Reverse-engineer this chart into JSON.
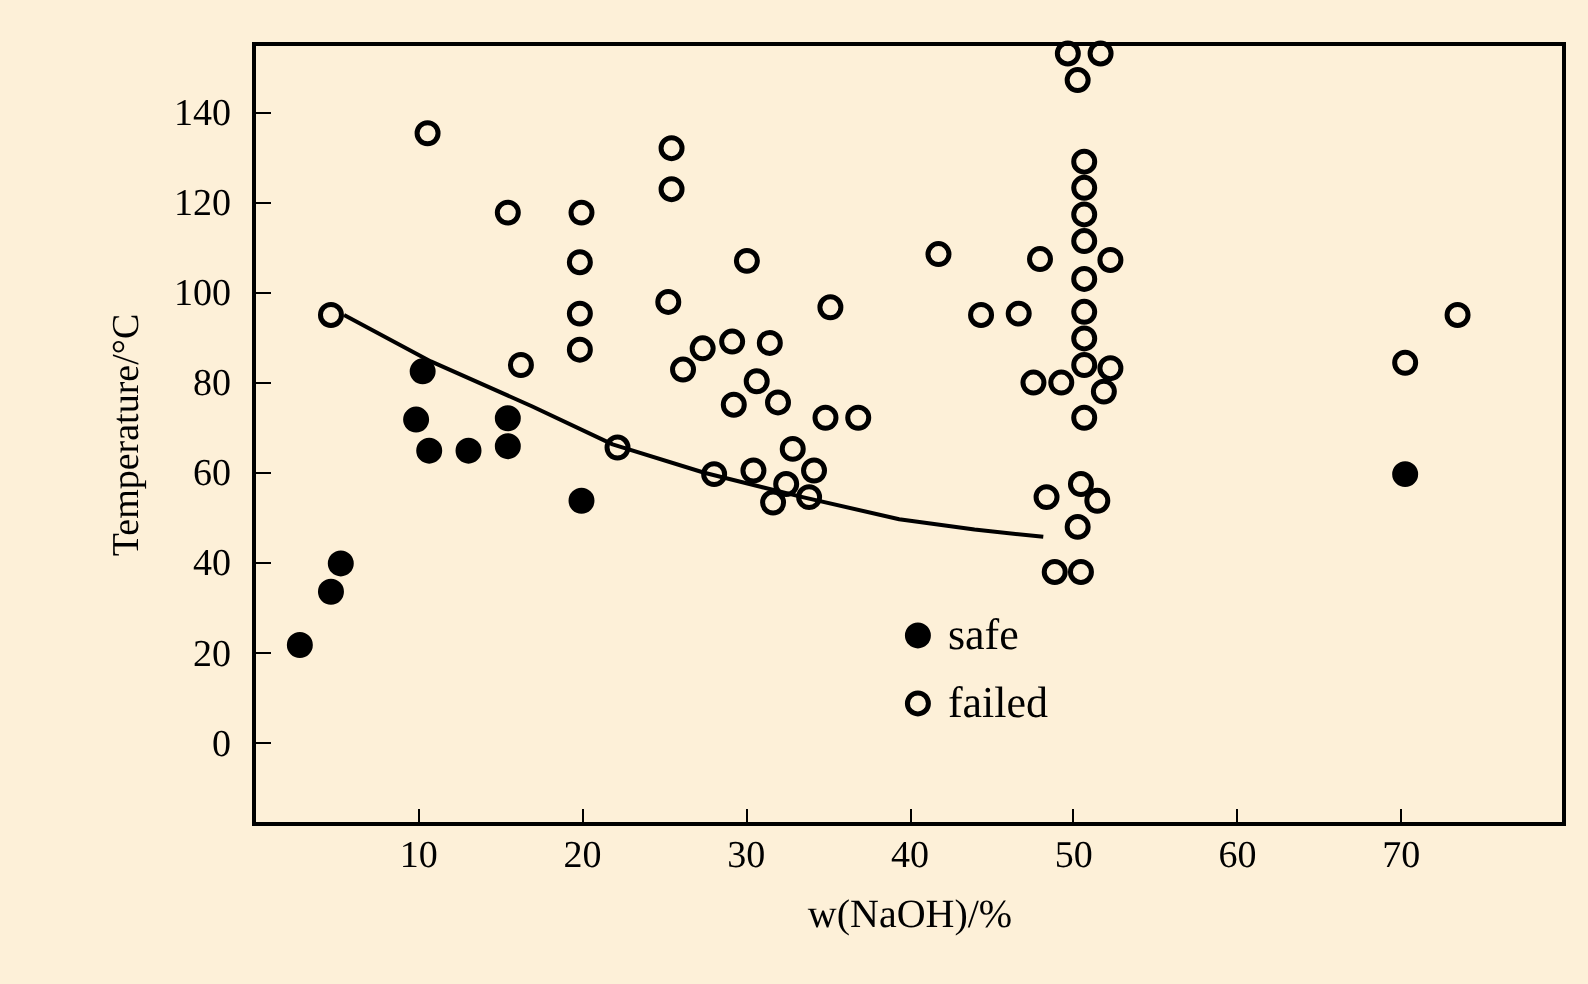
{
  "chart_data": {
    "type": "scatter",
    "xlabel": "w(NaOH)/%",
    "ylabel": "Temperature/°C",
    "xlim": [
      0,
      80
    ],
    "xticks": [
      10,
      20,
      30,
      40,
      50,
      60,
      70
    ],
    "ylim": [
      -18,
      155
    ],
    "yticks": [
      0,
      20,
      40,
      60,
      80,
      100,
      120,
      140
    ],
    "grid": false,
    "legend": "bottom",
    "marker": "circle",
    "series": [
      {
        "name": "safe",
        "color": "#000000",
        "x": [
          2.8,
          4.7,
          5.3,
          10.3,
          9.9,
          10.7,
          13.1,
          15.5,
          15.5,
          20.0,
          70.3
        ],
        "values": [
          21.7,
          33.5,
          39.8,
          82.4,
          71.7,
          64.8,
          64.8,
          72,
          65.8,
          53.7,
          59.6
        ]
      },
      {
        "name": "failed",
        "color": "#000000",
        "x": [
          10.6,
          4.7,
          15.5,
          16.3,
          20.0,
          19.9,
          19.9,
          19.9,
          25.5,
          25.5,
          25.3,
          22.2,
          30.1,
          26.2,
          27.4,
          29.2,
          31.5,
          30.7,
          29.3,
          32,
          35.2,
          34.9,
          36.9,
          28.1,
          30.5,
          32.9,
          34.2,
          31.7,
          33.9,
          32.5,
          41.8,
          44.4,
          46.7,
          48.0,
          47.6,
          49.3,
          49.7,
          51.7,
          50.3,
          50.7,
          50.7,
          50.7,
          50.7,
          50.7,
          50.7,
          50.7,
          50.7,
          50.7,
          52.3,
          52.3,
          51.9,
          48.4,
          50.5,
          51.5,
          50.3,
          48.9,
          50.5,
          70.3,
          73.5
        ],
        "values": [
          135.2,
          94.9,
          117.6,
          83.8,
          117.6,
          106.6,
          95.2,
          87.2,
          131.9,
          122.8,
          97.8,
          65.5,
          106.9,
          82.8,
          87.5,
          89,
          88.7,
          80.2,
          75,
          75.5,
          96.6,
          72.1,
          72.1,
          59.6,
          60.4,
          65.2,
          60.4,
          53.3,
          54.5,
          57.4,
          108.4,
          94.9,
          95.2,
          107.3,
          79.9,
          79.9,
          152.9,
          152.9,
          147,
          128.9,
          123.1,
          117.2,
          111.3,
          102.9,
          95.6,
          89.7,
          83.8,
          72.1,
          107.1,
          83.1,
          77.9,
          54.5,
          57.4,
          53.7,
          47.9,
          37.9,
          37.9,
          84.3,
          94.9
        ]
      },
      {
        "type": "line",
        "marker": "none",
        "color": "#000000",
        "x": [
          5.5,
          10.8,
          17,
          21.9,
          27.5,
          33.5,
          39.4,
          44,
          48.2
        ],
        "values": [
          94.9,
          84.6,
          74.6,
          66.2,
          59.9,
          54.5,
          49.6,
          47.3,
          45.7
        ]
      }
    ]
  }
}
